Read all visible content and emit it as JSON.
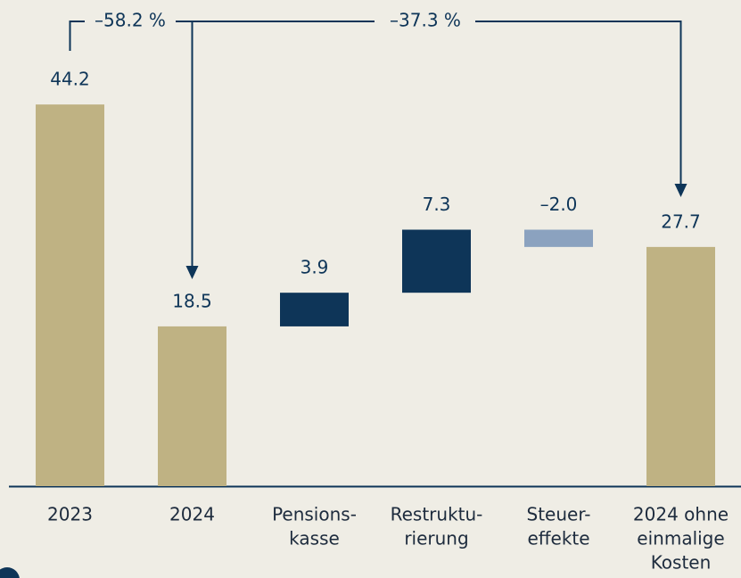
{
  "chart_data": {
    "type": "waterfall",
    "categories": [
      [
        "2023"
      ],
      [
        "2024"
      ],
      [
        "Pensions-",
        "kasse"
      ],
      [
        "Restruktu-",
        "rierung"
      ],
      [
        "Steuer-",
        "effekte"
      ],
      [
        "2024 ohne",
        "einmalige",
        "Kosten"
      ]
    ],
    "values": [
      44.2,
      18.5,
      3.9,
      7.3,
      -2.0,
      27.7
    ],
    "value_labels": [
      "44.2",
      "18.5",
      "3.9",
      "7.3",
      "–2.0",
      "27.7"
    ],
    "measure": [
      "absolute",
      "absolute",
      "relative",
      "relative",
      "relative",
      "total"
    ],
    "colors": {
      "total": "#bfb283",
      "increase": "#0e3558",
      "decrease": "#8ba2bf"
    },
    "annotations": [
      "–58.2 %",
      "–37.3 %"
    ]
  }
}
